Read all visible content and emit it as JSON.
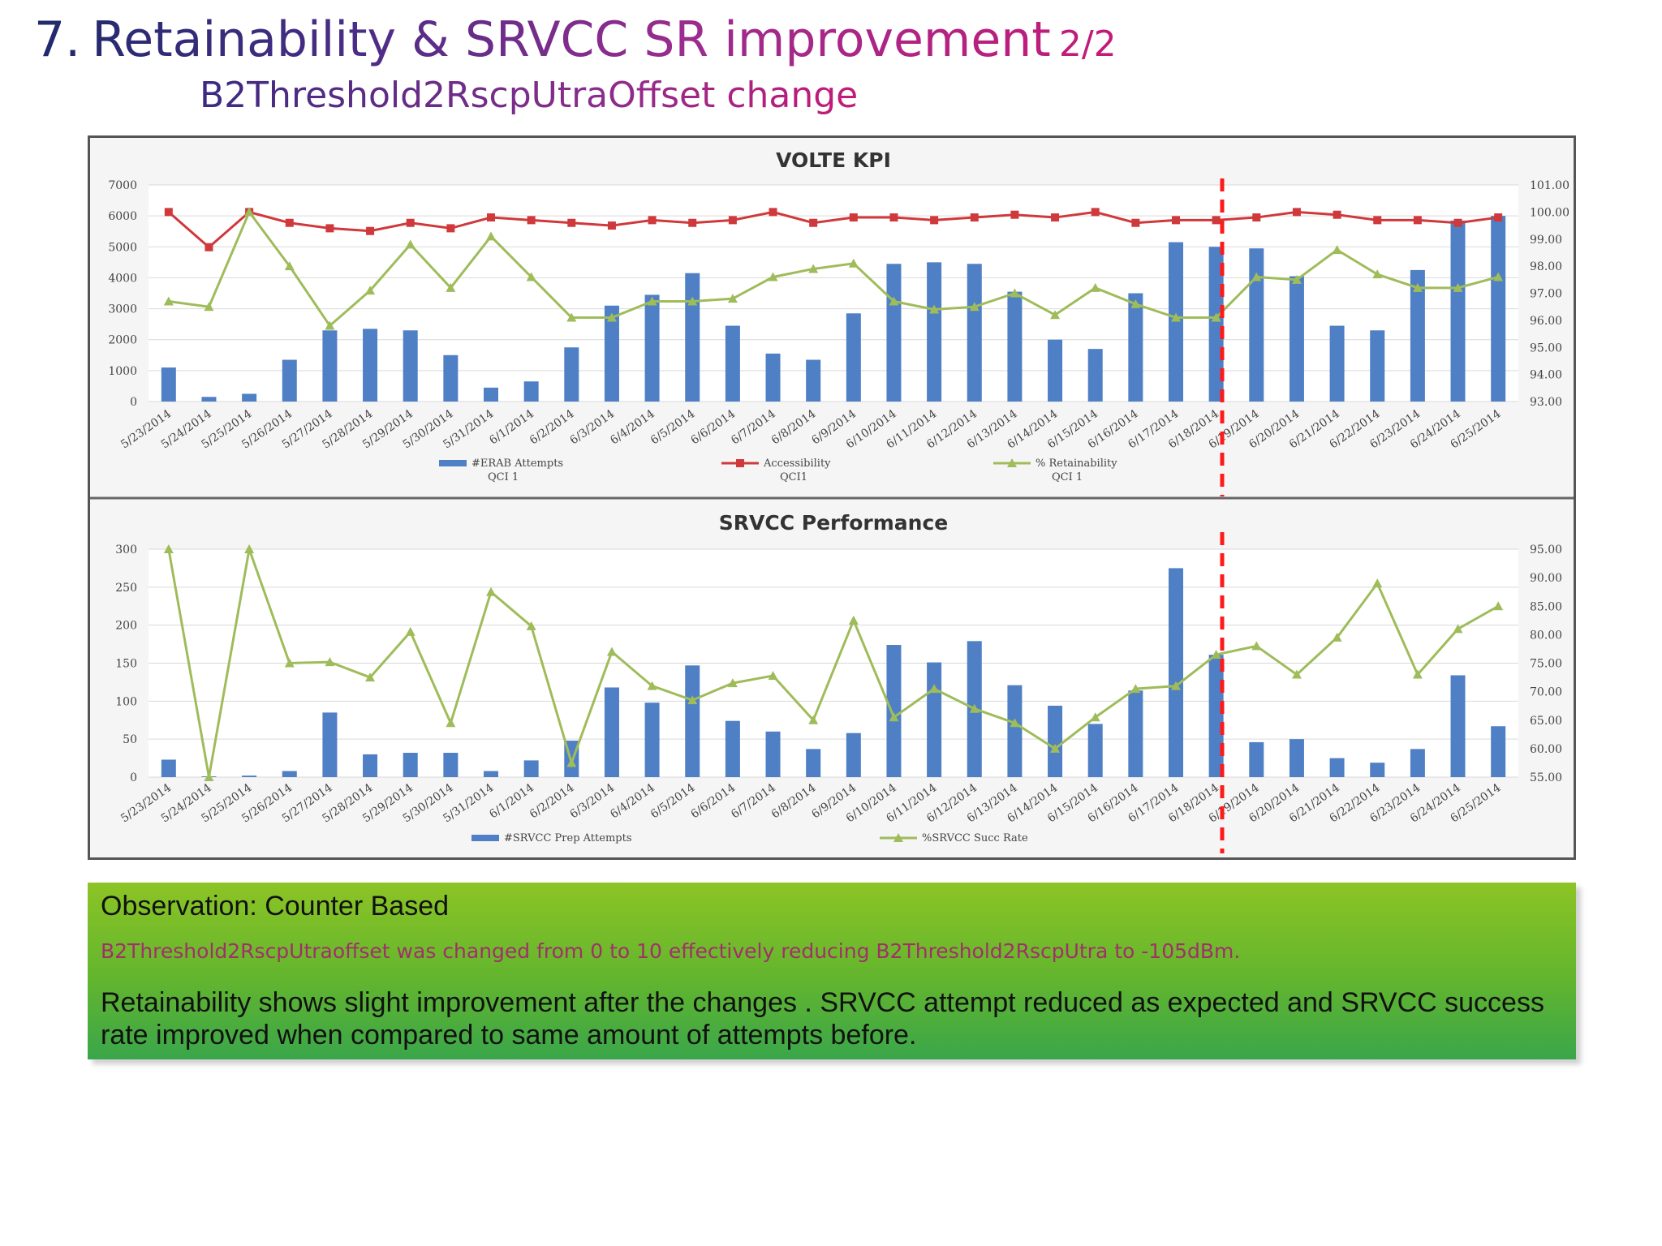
{
  "slide": {
    "number": "7.",
    "title": "Retainability & SRVCC SR improvement",
    "page": "2/2",
    "subtitle": "B2Threshold2RscpUtraOffset change"
  },
  "colors": {
    "bar": "#4f7fc4",
    "accessibility_line": "#d0393c",
    "retainability_line": "#9fbc5a",
    "change_marker": "#ff1a1a"
  },
  "chart_data": [
    {
      "type": "bar",
      "title": "VOLTE KPI",
      "categories": [
        "5/23/2014",
        "5/24/2014",
        "5/25/2014",
        "5/26/2014",
        "5/27/2014",
        "5/28/2014",
        "5/29/2014",
        "5/30/2014",
        "5/31/2014",
        "6/1/2014",
        "6/2/2014",
        "6/3/2014",
        "6/4/2014",
        "6/5/2014",
        "6/6/2014",
        "6/7/2014",
        "6/8/2014",
        "6/9/2014",
        "6/10/2014",
        "6/11/2014",
        "6/12/2014",
        "6/13/2014",
        "6/14/2014",
        "6/15/2014",
        "6/16/2014",
        "6/17/2014",
        "6/18/2014",
        "6/19/2014",
        "6/20/2014",
        "6/21/2014",
        "6/22/2014",
        "6/23/2014",
        "6/24/2014",
        "6/25/2014"
      ],
      "y_left_ticks": [
        "0",
        "1000",
        "2000",
        "3000",
        "4000",
        "5000",
        "6000",
        "7000"
      ],
      "y_right_ticks": [
        "93.00",
        "94.00",
        "95.00",
        "96.00",
        "97.00",
        "98.00",
        "99.00",
        "100.00",
        "101.00"
      ],
      "ylim_left": [
        0,
        7000
      ],
      "ylim_right": [
        93,
        101
      ],
      "grid": true,
      "legend_position": "bottom",
      "change_marker_category": "6/19/2014",
      "series": [
        {
          "name": "#ERAB Attempts QCI 1",
          "legend_line1": "#ERAB Attempts",
          "legend_line2": "QCI 1",
          "kind": "bar",
          "axis": "left",
          "values": [
            1100,
            150,
            250,
            1350,
            2300,
            2350,
            2300,
            1500,
            450,
            650,
            1750,
            3100,
            3450,
            4150,
            2450,
            1550,
            1350,
            2850,
            4450,
            4500,
            4450,
            3550,
            2000,
            1700,
            3500,
            5150,
            5000,
            4950,
            4050,
            2450,
            2300,
            4250,
            5850,
            6000
          ]
        },
        {
          "name": "Accessibility QCI1",
          "legend_line1": "Accessibility",
          "legend_line2": "QCI1",
          "kind": "line",
          "axis": "right",
          "marker": "square",
          "values": [
            100.0,
            98.7,
            100.0,
            99.6,
            99.4,
            99.3,
            99.6,
            99.4,
            99.8,
            99.7,
            99.6,
            99.5,
            99.7,
            99.6,
            99.7,
            100.0,
            99.6,
            99.8,
            99.8,
            99.7,
            99.8,
            99.9,
            99.8,
            100.0,
            99.6,
            99.7,
            99.7,
            99.8,
            100.0,
            99.9,
            99.7,
            99.7,
            99.6,
            99.8
          ]
        },
        {
          "name": "% Retainability QCI 1",
          "legend_line1": "% Retainability",
          "legend_line2": "QCI 1",
          "kind": "line",
          "axis": "right",
          "marker": "triangle",
          "values": [
            96.7,
            96.5,
            100.0,
            98.0,
            95.8,
            97.1,
            98.8,
            97.2,
            99.1,
            97.6,
            96.1,
            96.1,
            96.7,
            96.7,
            96.8,
            97.6,
            97.9,
            98.1,
            96.7,
            96.4,
            96.5,
            97.0,
            96.2,
            97.2,
            96.6,
            96.1,
            96.1,
            97.6,
            97.5,
            98.6,
            97.7,
            97.2,
            97.2,
            97.6
          ]
        }
      ]
    },
    {
      "type": "bar",
      "title": "SRVCC Performance",
      "categories": [
        "5/23/2014",
        "5/24/2014",
        "5/25/2014",
        "5/26/2014",
        "5/27/2014",
        "5/28/2014",
        "5/29/2014",
        "5/30/2014",
        "5/31/2014",
        "6/1/2014",
        "6/2/2014",
        "6/3/2014",
        "6/4/2014",
        "6/5/2014",
        "6/6/2014",
        "6/7/2014",
        "6/8/2014",
        "6/9/2014",
        "6/10/2014",
        "6/11/2014",
        "6/12/2014",
        "6/13/2014",
        "6/14/2014",
        "6/15/2014",
        "6/16/2014",
        "6/17/2014",
        "6/18/2014",
        "6/19/2014",
        "6/20/2014",
        "6/21/2014",
        "6/22/2014",
        "6/23/2014",
        "6/24/2014",
        "6/25/2014"
      ],
      "y_left_ticks": [
        "0",
        "50",
        "100",
        "150",
        "200",
        "250",
        "300"
      ],
      "y_right_ticks": [
        "55.00",
        "60.00",
        "65.00",
        "70.00",
        "75.00",
        "80.00",
        "85.00",
        "90.00",
        "95.00"
      ],
      "ylim_left": [
        0,
        300
      ],
      "ylim_right": [
        55,
        95
      ],
      "grid": true,
      "legend_position": "bottom",
      "change_marker_category": "6/19/2014",
      "series": [
        {
          "name": "#SRVCC Prep Attempts",
          "legend_line1": "#SRVCC Prep Attempts",
          "kind": "bar",
          "axis": "left",
          "values": [
            23,
            1,
            2,
            8,
            85,
            30,
            32,
            32,
            8,
            22,
            48,
            118,
            98,
            147,
            74,
            60,
            37,
            58,
            174,
            151,
            179,
            121,
            94,
            70,
            114,
            275,
            161,
            46,
            50,
            25,
            19,
            37,
            134,
            67
          ]
        },
        {
          "name": "%SRVCC Succ Rate",
          "legend_line1": "%SRVCC Succ Rate",
          "kind": "line",
          "axis": "right",
          "marker": "triangle",
          "values": [
            95.0,
            55.0,
            95.0,
            75.0,
            75.2,
            72.5,
            80.5,
            64.5,
            87.5,
            81.5,
            57.5,
            77.0,
            71.0,
            68.5,
            71.5,
            72.8,
            65.0,
            82.5,
            65.5,
            70.5,
            67.0,
            64.5,
            60.0,
            65.5,
            70.5,
            71.0,
            76.5,
            78.0,
            73.0,
            79.5,
            89.0,
            73.0,
            81.0,
            85.0
          ]
        }
      ]
    }
  ],
  "observation": {
    "heading": "Observation: Counter Based",
    "change": "B2Threshold2RscpUtraoffset was changed from 0 to 10 effectively reducing  B2Threshold2RscpUtra  to -105dBm.",
    "result": "Retainability shows slight improvement after the changes . SRVCC attempt reduced as expected and SRVCC success rate improved when compared to same amount of attempts before."
  }
}
